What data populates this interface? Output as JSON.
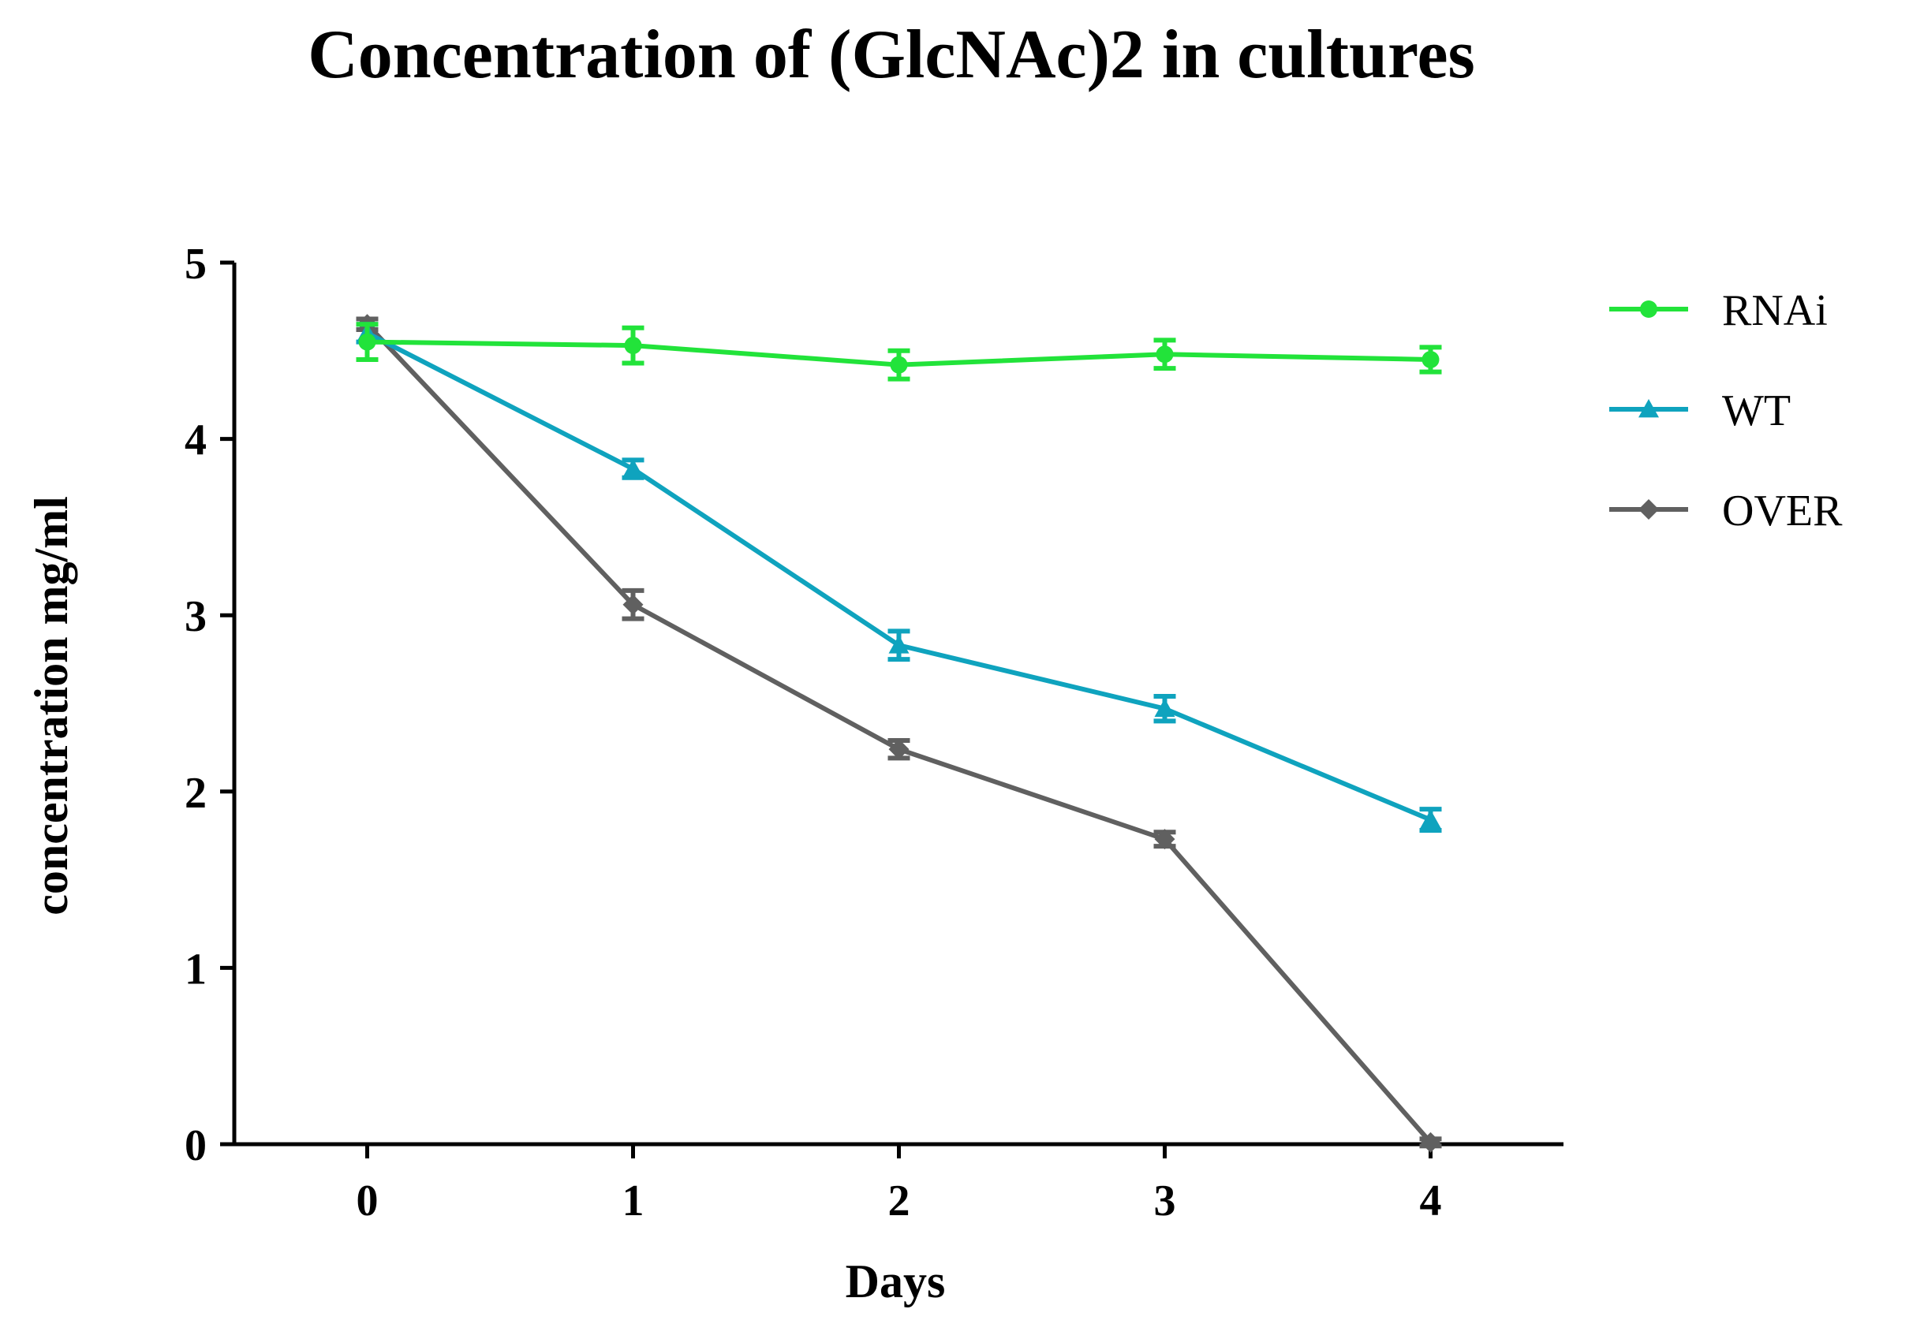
{
  "chart_data": {
    "type": "line",
    "title": "Concentration of (GlcNAc)2 in cultures",
    "xlabel": "Days",
    "ylabel": "concentration  mg/ml",
    "x": [
      0,
      1,
      2,
      3,
      4
    ],
    "xlim": [
      -0.5,
      4.5
    ],
    "ylim": [
      0,
      5
    ],
    "xticks": [
      0,
      1,
      2,
      3,
      4
    ],
    "yticks": [
      0,
      1,
      2,
      3,
      4,
      5
    ],
    "grid": false,
    "legend_position": "right",
    "series": [
      {
        "name": "RNAi",
        "marker": "circle",
        "color": "#22e33a",
        "values": [
          4.55,
          4.53,
          4.42,
          4.48,
          4.45
        ],
        "errors": [
          0.1,
          0.1,
          0.08,
          0.08,
          0.07
        ]
      },
      {
        "name": "WT",
        "marker": "triangle",
        "color": "#0fa3be",
        "values": [
          4.6,
          3.83,
          2.83,
          2.47,
          1.84
        ],
        "errors": [
          0.05,
          0.05,
          0.08,
          0.07,
          0.06
        ]
      },
      {
        "name": "OVER",
        "marker": "diamond",
        "color": "#606060",
        "values": [
          4.65,
          3.06,
          2.24,
          1.73,
          0.01
        ],
        "errors": [
          0.03,
          0.08,
          0.05,
          0.04,
          0.02
        ]
      }
    ]
  }
}
